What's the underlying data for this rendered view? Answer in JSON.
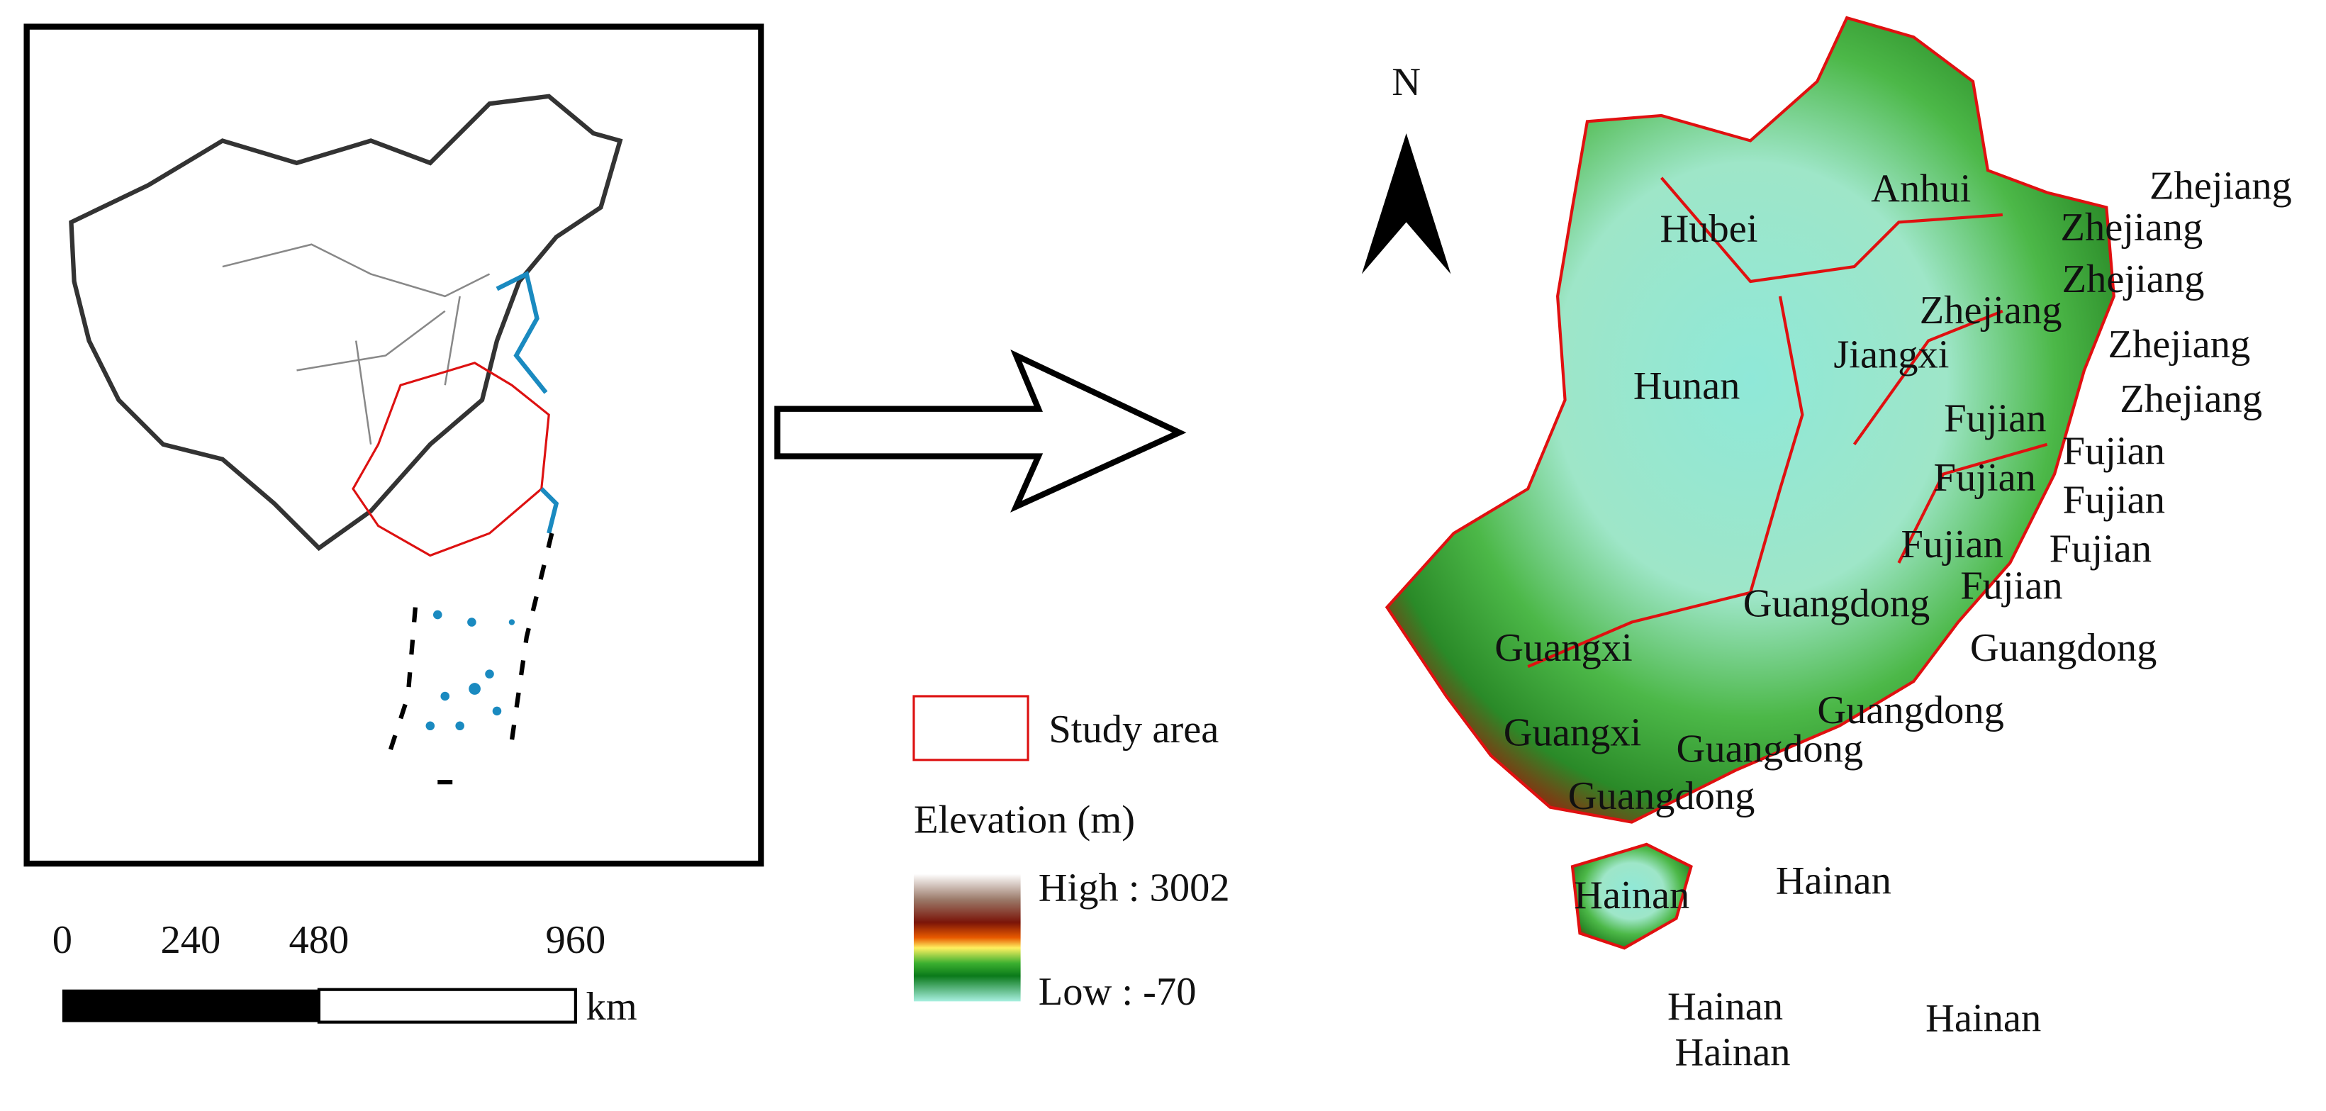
{
  "north_label": "N",
  "scale_bar": {
    "ticks": [
      0,
      240,
      480,
      960
    ],
    "unit": "km"
  },
  "legend": {
    "study_area": "Study area",
    "elevation_title": "Elevation (m)",
    "high": "High : 3002",
    "low": "Low : -70"
  },
  "province_labels": [
    "Hubei",
    "Anhui",
    "Zhejiang",
    "Zhejiang",
    "Zhejiang",
    "Zhejiang",
    "Jiangxi",
    "Zhejiang",
    "Hunan",
    "Zhejiang",
    "Fujian",
    "Fujian",
    "Fujian",
    "Fujian",
    "Fujian",
    "Fujian",
    "Guangdong",
    "Fujian",
    "Guangxi",
    "Guangdong",
    "Guangdong",
    "Guangxi",
    "Guangdong",
    "Guangdong",
    "Hainan",
    "Hainan",
    "Hainan",
    "Hainan",
    "Hainan"
  ]
}
